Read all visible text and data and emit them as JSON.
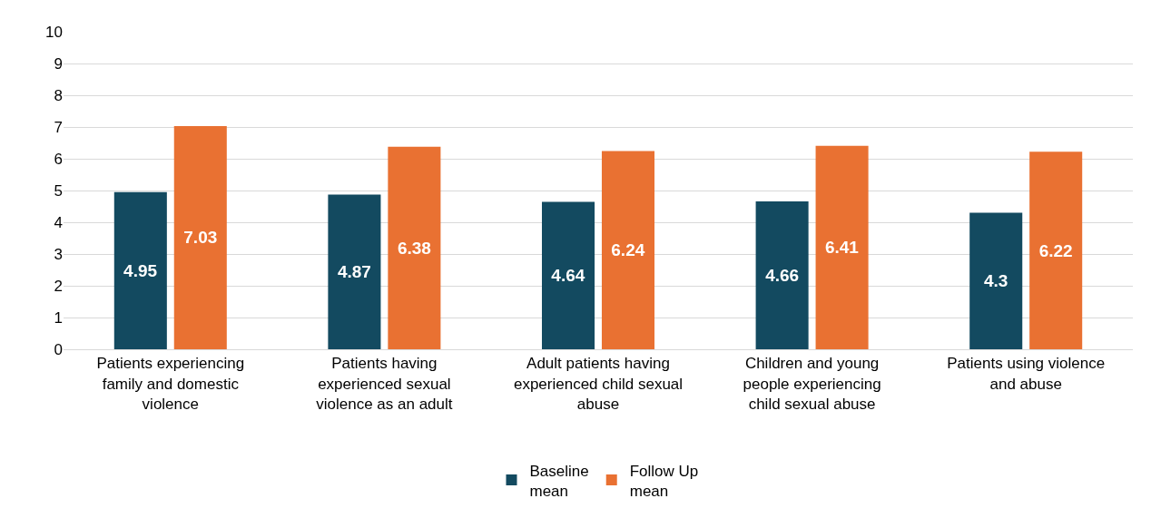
{
  "chart_data": {
    "type": "bar",
    "categories": [
      "Patients experiencing family and domestic violence",
      "Patients having experienced sexual violence as an adult",
      "Adult patients having experienced child sexual abuse",
      "Children and young people experiencing child sexual abuse",
      "Patients using violence and abuse"
    ],
    "series": [
      {
        "name": "Baseline mean",
        "color": "#134a60",
        "values": [
          4.95,
          4.87,
          4.64,
          4.66,
          4.3
        ]
      },
      {
        "name": "Follow Up mean",
        "color": "#e97132",
        "values": [
          7.03,
          6.38,
          6.24,
          6.41,
          6.22
        ]
      }
    ],
    "ylim": [
      0,
      10
    ],
    "yticks": [
      0,
      1,
      2,
      3,
      4,
      5,
      6,
      7,
      8,
      9,
      10
    ],
    "grid": "y",
    "legend": "bottom",
    "data_labels": true
  }
}
